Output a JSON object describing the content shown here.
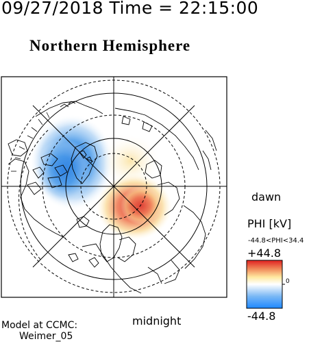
{
  "header": {
    "datetime": "09/27/2018 Time = 22:15:00",
    "hemisphere": "Northern Hemisphere"
  },
  "map": {
    "dawn_label": "dawn",
    "midnight_label": "midnight",
    "projection": "polar-stereographic-north",
    "grid": "circles-and-meridians",
    "potential_cells": [
      {
        "name": "negative-cell",
        "sign": "negative",
        "color": "#3a8fe6"
      },
      {
        "name": "positive-cell",
        "sign": "positive",
        "color": "#e04a3a"
      }
    ]
  },
  "colorbar": {
    "title": "PHI [kV]",
    "range_text": "-44.8<PHI<34.4",
    "max_label": "+44.8",
    "min_label": "-44.8",
    "mid_label": "0",
    "colors": [
      "#1e88ff",
      "#ffffff",
      "#ffe9a0",
      "#e02020"
    ]
  },
  "model": {
    "line1": "Model at CCMC:",
    "line2": "Weimer_05"
  }
}
